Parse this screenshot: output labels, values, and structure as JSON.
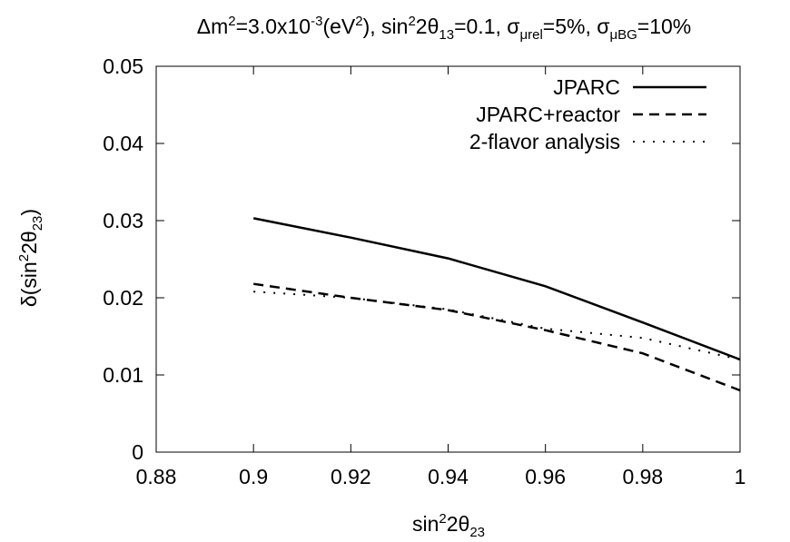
{
  "chart_data": {
    "type": "line",
    "title": {
      "dm2": "Δm",
      "dm2_sup": "2",
      "dm2_val": "=3.0x10",
      "dm2_exp": "-3",
      "dm2_unit_open": "(eV",
      "dm2_unit_sup": "2",
      "dm2_unit_close": "), ",
      "sin_pre": "sin",
      "sin_sup": "2",
      "sin_mid": "2θ",
      "sin_sub": "13",
      "sin_val": "=0.1, ",
      "sig1": "σ",
      "sig1_sub": "μrel",
      "sig1_val": "=5%, ",
      "sig2": "σ",
      "sig2_sub": "μBG",
      "sig2_val": "=10%"
    },
    "xlabel": {
      "pre": "sin",
      "sup": "2",
      "mid": "2θ",
      "sub": "23"
    },
    "ylabel": {
      "pre": "δ(sin",
      "sup": "2",
      "mid": "2θ",
      "sub": "23",
      "post": ")"
    },
    "xlim": [
      0.88,
      1.0
    ],
    "ylim": [
      0,
      0.05
    ],
    "x_ticks": [
      {
        "v": 0.88,
        "label": "0.88"
      },
      {
        "v": 0.9,
        "label": "0.9"
      },
      {
        "v": 0.92,
        "label": "0.92"
      },
      {
        "v": 0.94,
        "label": "0.94"
      },
      {
        "v": 0.96,
        "label": "0.96"
      },
      {
        "v": 0.98,
        "label": "0.98"
      },
      {
        "v": 1.0,
        "label": "1"
      }
    ],
    "y_ticks": [
      {
        "v": 0,
        "label": "0"
      },
      {
        "v": 0.01,
        "label": "0.01"
      },
      {
        "v": 0.02,
        "label": "0.02"
      },
      {
        "v": 0.03,
        "label": "0.03"
      },
      {
        "v": 0.04,
        "label": "0.04"
      },
      {
        "v": 0.05,
        "label": "0.05"
      }
    ],
    "grid": false,
    "legend_position": "top-right",
    "series": [
      {
        "name": "JPARC",
        "style": "solid",
        "x": [
          0.9,
          0.92,
          0.94,
          0.96,
          0.98,
          1.0
        ],
        "y": [
          0.0303,
          0.0278,
          0.0251,
          0.0215,
          0.0168,
          0.012
        ]
      },
      {
        "name": "JPARC+reactor",
        "style": "dashed",
        "x": [
          0.9,
          0.92,
          0.94,
          0.96,
          0.98,
          1.0
        ],
        "y": [
          0.0218,
          0.02,
          0.0184,
          0.0158,
          0.0128,
          0.008
        ]
      },
      {
        "name": "2-flavor analysis",
        "style": "dotted",
        "x": [
          0.9,
          0.92,
          0.94,
          0.96,
          0.98,
          1.0
        ],
        "y": [
          0.0208,
          0.02,
          0.0185,
          0.016,
          0.0148,
          0.012
        ]
      }
    ]
  }
}
